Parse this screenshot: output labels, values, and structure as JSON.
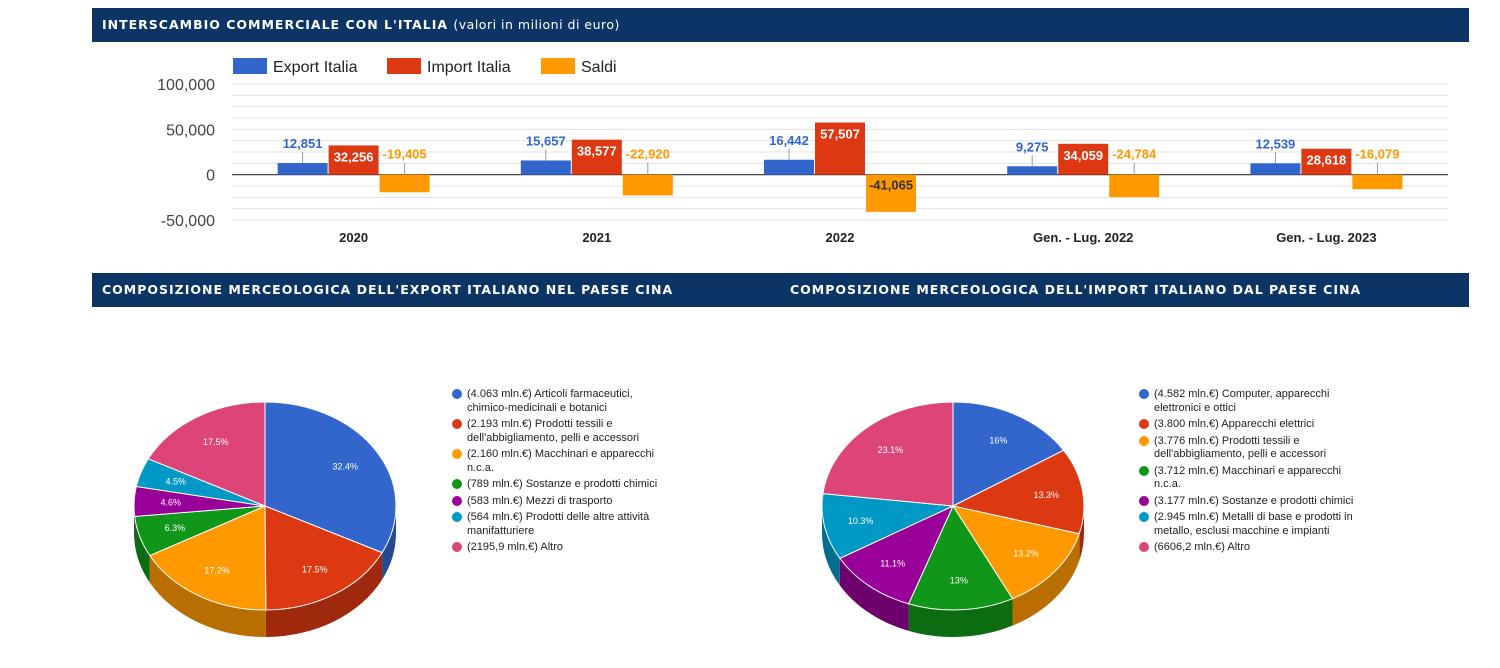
{
  "banners": {
    "trade_title": "INTERSCAMBIO COMMERCIALE CON L'ITALIA",
    "trade_subtitle": "(valori in milioni di euro)",
    "export_title": "COMPOSIZIONE MERCEOLOGICA DELL'EXPORT ITALIANO NEL PAESE CINA",
    "import_title": "COMPOSIZIONE MERCEOLOGICA DELL'IMPORT ITALIANO DAL PAESE CINA"
  },
  "chart_data": [
    {
      "type": "bar",
      "categories": [
        "2020",
        "2021",
        "2022",
        "Gen. - Lug. 2022",
        "Gen. - Lug. 2023"
      ],
      "series": [
        {
          "name": "Export Italia",
          "color": "#3366cc",
          "values": [
            12851,
            15657,
            16442,
            9275,
            12539
          ],
          "labels": [
            "12,851",
            "15,657",
            "16,442",
            "9,275",
            "12,539"
          ]
        },
        {
          "name": "Import Italia",
          "color": "#dc3912",
          "values": [
            32256,
            38577,
            57507,
            34059,
            28618
          ],
          "labels": [
            "32,256",
            "38,577",
            "57,507",
            "34,059",
            "28,618"
          ]
        },
        {
          "name": "Saldi",
          "color": "#ff9900",
          "values": [
            -19405,
            -22920,
            -41065,
            -24784,
            -16079
          ],
          "labels": [
            "-19,405",
            "-22,920",
            "-41,065",
            "-24,784",
            "-16,079"
          ]
        }
      ],
      "yticks": [
        100000,
        50000,
        0,
        -50000
      ],
      "ytick_labels": [
        "100,000",
        "50,000",
        "0",
        "-50,000"
      ],
      "ylim": [
        -50000,
        100000
      ],
      "legend_position": "top-left",
      "grid": true
    },
    {
      "type": "pie",
      "slices": [
        {
          "label": "(4.063 mln.€) Articoli farmaceutici, chimico-medicinali e botanici",
          "value": 32.4,
          "pct_label": "32.4%",
          "color": "#3366cc"
        },
        {
          "label": "(2.193 mln.€) Prodotti tessili e dell'abbigliamento, pelli e accessori",
          "value": 17.5,
          "pct_label": "17.5%",
          "color": "#dc3912"
        },
        {
          "label": "(2.160 mln.€) Macchinari e apparecchi n.c.a.",
          "value": 17.2,
          "pct_label": "17.2%",
          "color": "#ff9900"
        },
        {
          "label": "(789 mln.€) Sostanze e prodotti chimici",
          "value": 6.3,
          "pct_label": "6.3%",
          "color": "#109618"
        },
        {
          "label": "(583 mln.€) Mezzi di trasporto",
          "value": 4.6,
          "pct_label": "4.6%",
          "color": "#990099"
        },
        {
          "label": "(564 mln.€) Prodotti delle altre attività manifatturiere",
          "value": 4.5,
          "pct_label": "4.5%",
          "color": "#0099c6"
        },
        {
          "label": "(2195,9 mln.€) Altro",
          "value": 17.5,
          "pct_label": "17.5%",
          "color": "#dd4477"
        }
      ],
      "legend_position": "right"
    },
    {
      "type": "pie",
      "slices": [
        {
          "label": "(4.582 mln.€) Computer, apparecchi elettronici e ottici",
          "value": 16,
          "pct_label": "16%",
          "color": "#3366cc"
        },
        {
          "label": "(3.800 mln.€) Apparecchi elettrici",
          "value": 13.3,
          "pct_label": "13.3%",
          "color": "#dc3912"
        },
        {
          "label": "(3.776 mln.€) Prodotti tessili e dell'abbigliamento, pelli e accessori",
          "value": 13.2,
          "pct_label": "13.2%",
          "color": "#ff9900"
        },
        {
          "label": "(3.712 mln.€) Macchinari e apparecchi n.c.a.",
          "value": 13,
          "pct_label": "13%",
          "color": "#109618"
        },
        {
          "label": "(3.177 mln.€) Sostanze e prodotti chimici",
          "value": 11.1,
          "pct_label": "11.1%",
          "color": "#990099"
        },
        {
          "label": "(2.945 mln.€) Metalli di base e prodotti in metallo, esclusi macchine e impianti",
          "value": 10.3,
          "pct_label": "10.3%",
          "color": "#0099c6"
        },
        {
          "label": "(6606,2 mln.€) Altro",
          "value": 23.1,
          "pct_label": "23.1%",
          "color": "#dd4477"
        }
      ],
      "legend_position": "right"
    }
  ]
}
